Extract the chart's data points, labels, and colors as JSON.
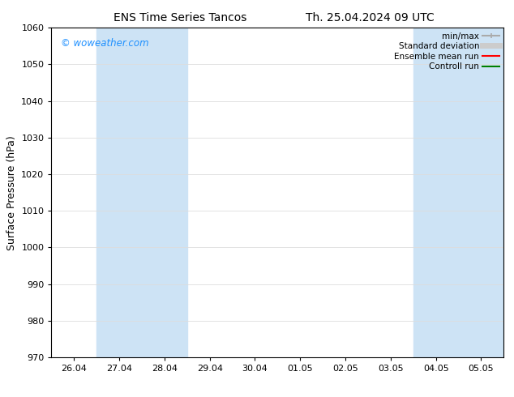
{
  "title1": "ENS Time Series Tancos",
  "title2": "Th. 25.04.2024 09 UTC",
  "ylabel": "Surface Pressure (hPa)",
  "ylim": [
    970,
    1060
  ],
  "yticks": [
    970,
    980,
    990,
    1000,
    1010,
    1020,
    1030,
    1040,
    1050,
    1060
  ],
  "x_labels": [
    "26.04",
    "27.04",
    "28.04",
    "29.04",
    "30.04",
    "01.05",
    "02.05",
    "03.05",
    "04.05",
    "05.05"
  ],
  "x_positions": [
    0,
    1,
    2,
    3,
    4,
    5,
    6,
    7,
    8,
    9
  ],
  "shaded_regions": [
    {
      "xmin": 0.5,
      "xmax": 2.5,
      "color": "#cde3f5"
    },
    {
      "xmin": 7.5,
      "xmax": 9.5,
      "color": "#cde3f5"
    }
  ],
  "watermark": "© woweather.com",
  "watermark_color": "#1e90ff",
  "bg_color": "#ffffff",
  "plot_bg_color": "#ffffff",
  "legend_items": [
    {
      "label": "min/max",
      "color": "#aaaaaa",
      "lw": 1.5,
      "ls": "-"
    },
    {
      "label": "Standard deviation",
      "color": "#cccccc",
      "lw": 5,
      "ls": "-"
    },
    {
      "label": "Ensemble mean run",
      "color": "#ff0000",
      "lw": 1.5,
      "ls": "-"
    },
    {
      "label": "Controll run",
      "color": "#008000",
      "lw": 1.5,
      "ls": "-"
    }
  ],
  "grid_color": "#dddddd",
  "spine_color": "#000000",
  "title_fontsize": 10,
  "tick_fontsize": 8,
  "ylabel_fontsize": 9
}
